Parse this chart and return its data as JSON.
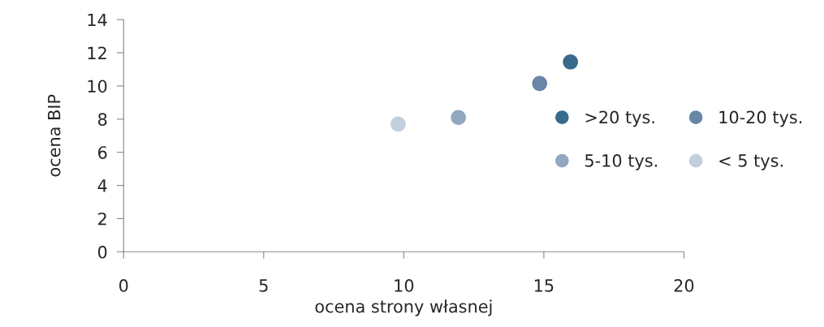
{
  "chart_data": {
    "type": "scatter",
    "xlabel": "ocena strony własnej",
    "ylabel": "ocena BIP",
    "series": [
      {
        "name": ">20 tys.",
        "color": "#386a8c",
        "x": [
          15.95
        ],
        "values": [
          11.45
        ]
      },
      {
        "name": "10-20 tys.",
        "color": "#6886a6",
        "x": [
          14.85
        ],
        "values": [
          10.15
        ]
      },
      {
        "name": "5-10 tys.",
        "color": "#91a8c0",
        "x": [
          11.95
        ],
        "values": [
          8.1
        ]
      },
      {
        "name": "< 5 tys.",
        "color": "#c2cfdd",
        "x": [
          9.8
        ],
        "values": [
          7.7
        ]
      }
    ],
    "xlim": [
      0,
      20
    ],
    "xticks": [
      0,
      5,
      10,
      15,
      20
    ],
    "ylim": [
      0,
      14
    ],
    "yticks": [
      0,
      2,
      4,
      6,
      8,
      10,
      12,
      14
    ],
    "grid": false,
    "legend": "right",
    "marker": "circle"
  }
}
